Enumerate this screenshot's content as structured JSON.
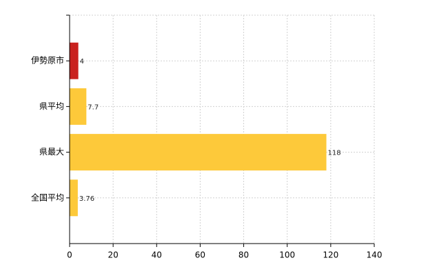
{
  "chart_data": {
    "type": "bar",
    "orientation": "horizontal",
    "categories": [
      "伊勢原市",
      "県平均",
      "県最大",
      "全国平均"
    ],
    "values": [
      4,
      7.7,
      118,
      3.76
    ],
    "colors": [
      "#c9211e",
      "#fdc93a",
      "#fdc93a",
      "#fdc93a"
    ],
    "xlim": [
      0,
      140
    ],
    "xticks": [
      0,
      20,
      40,
      60,
      80,
      100,
      120,
      140
    ],
    "grid": true
  }
}
